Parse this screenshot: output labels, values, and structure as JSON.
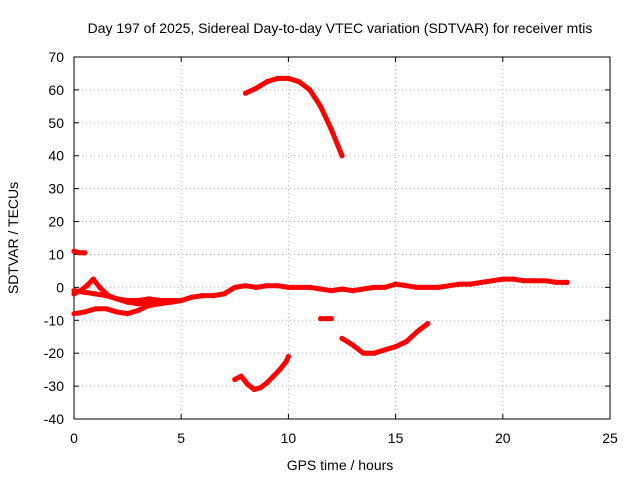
{
  "chart_data": {
    "type": "scatter",
    "title": "Day 197 of 2025, Sidereal Day-to-day VTEC variation (SDTVAR) for receiver mtis",
    "xlabel": "GPS time / hours",
    "ylabel": "SDTVAR / TECUs",
    "xlim": [
      0,
      25
    ],
    "ylim": [
      -40,
      70
    ],
    "xticks": [
      0,
      5,
      10,
      15,
      20,
      25
    ],
    "yticks": [
      -40,
      -30,
      -20,
      -10,
      0,
      10,
      20,
      30,
      40,
      50,
      60,
      70
    ],
    "grid": true,
    "legend": "none",
    "series_color": "#ff0000",
    "series": [
      {
        "name": "arc-baseline",
        "x": [
          0,
          0.5,
          1,
          1.5,
          2,
          2.5,
          3,
          3.5,
          4,
          4.5,
          5,
          5.5,
          6,
          6.5,
          7,
          7.5,
          8,
          8.5,
          9,
          9.5,
          10,
          10.5,
          11,
          11.5,
          12,
          12.5,
          13,
          13.5,
          14,
          14.5,
          15,
          15.5,
          16,
          16.5,
          17,
          17.5,
          18,
          18.5,
          19,
          19.5,
          20,
          20.5,
          21,
          21.5,
          22,
          22.5,
          23
        ],
        "y": [
          -1,
          -1.5,
          -2,
          -2.5,
          -3.5,
          -4,
          -4,
          -3.5,
          -4,
          -4,
          -4,
          -3,
          -2.5,
          -2.5,
          -2,
          0,
          0.5,
          0,
          0.5,
          0.5,
          0,
          0,
          0,
          -0.5,
          -1,
          -0.5,
          -1,
          -0.5,
          0,
          0,
          1,
          0.5,
          0,
          0,
          0,
          0.5,
          1,
          1,
          1.5,
          2,
          2.5,
          2.5,
          2,
          2,
          2,
          1.5,
          1.5
        ]
      },
      {
        "name": "arc-early-hump",
        "x": [
          0,
          0.3,
          0.6,
          0.9,
          1.2,
          1.6,
          2,
          2.5,
          3,
          3.5,
          4,
          4.5,
          5
        ],
        "y": [
          -2,
          -1,
          0.5,
          2.5,
          0,
          -2.5,
          -3.5,
          -4.5,
          -5,
          -5,
          -4.5,
          -4.5,
          -4
        ]
      },
      {
        "name": "arc-lower",
        "x": [
          0,
          0.5,
          1,
          1.5,
          2,
          2.5,
          3,
          3.5,
          4,
          4.5,
          5
        ],
        "y": [
          -8,
          -7.5,
          -6.5,
          -6.5,
          -7.5,
          -8,
          -7,
          -5.5,
          -5,
          -4.5,
          -4
        ]
      },
      {
        "name": "arc-short-top",
        "x": [
          0,
          0.25,
          0.5
        ],
        "y": [
          11,
          10.5,
          10.5
        ]
      },
      {
        "name": "arc-high",
        "x": [
          8,
          8.5,
          9,
          9.5,
          10,
          10.5,
          11,
          11.5,
          12,
          12.5
        ],
        "y": [
          59,
          60.5,
          62.5,
          63.5,
          63.5,
          62.5,
          60,
          55,
          48,
          40
        ]
      },
      {
        "name": "arc-low-left",
        "x": [
          7.5,
          7.8,
          8.1,
          8.4,
          8.7,
          9,
          9.3,
          9.6,
          9.9,
          10
        ],
        "y": [
          -28,
          -27,
          -29.5,
          -31,
          -30.5,
          -29,
          -27,
          -25,
          -22.5,
          -21
        ]
      },
      {
        "name": "arc-short-mid",
        "x": [
          11.5,
          11.8,
          12
        ],
        "y": [
          -9.5,
          -9.5,
          -9.5
        ]
      },
      {
        "name": "arc-low-right",
        "x": [
          12.5,
          13,
          13.5,
          14,
          14.5,
          15,
          15.5,
          16,
          16.5
        ],
        "y": [
          -15.5,
          -17.5,
          -20,
          -20,
          -19,
          -18,
          -16.5,
          -13.5,
          -11
        ]
      }
    ]
  }
}
